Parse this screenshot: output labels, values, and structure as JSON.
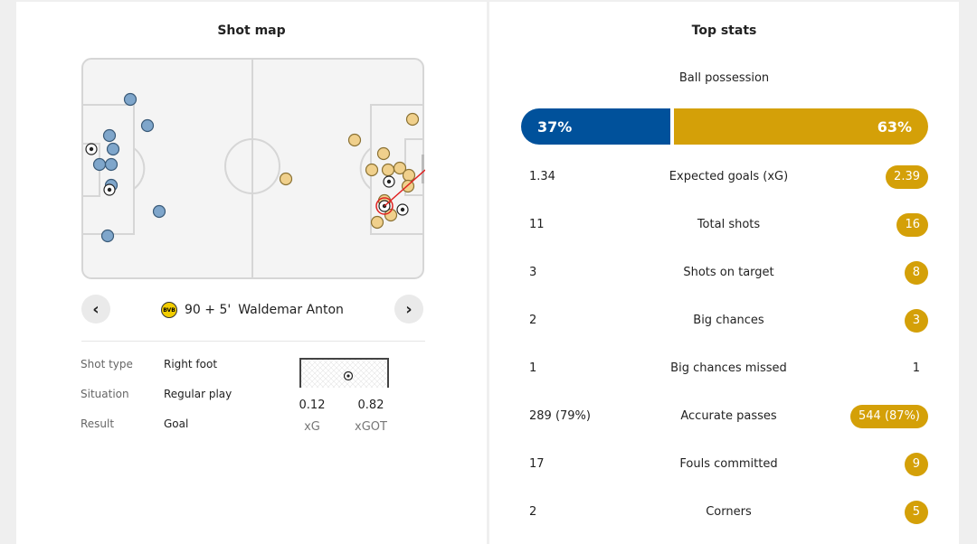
{
  "shot_map": {
    "title": "Shot map",
    "selected_shot": {
      "time": "90 + 5'",
      "player": "Waldemar Anton",
      "team_logo_text": "BVB",
      "details": [
        {
          "label": "Shot type",
          "value": "Right foot"
        },
        {
          "label": "Situation",
          "value": "Regular play"
        },
        {
          "label": "Result",
          "value": "Goal"
        }
      ],
      "xg": "0.12",
      "xgot": "0.82",
      "xg_label": "xG",
      "xgot_label": "xGOT"
    },
    "prev_icon": "chevron-left-icon",
    "next_icon": "chevron-right-icon"
  },
  "top_stats": {
    "title": "Top stats",
    "possession": {
      "label": "Ball possession",
      "home": "37%",
      "away": "63%",
      "home_fraction": 0.37,
      "home_color": "#00519b",
      "away_color": "#d4a008"
    },
    "rows": [
      {
        "label": "Expected goals (xG)",
        "home": "1.34",
        "away": "2.39",
        "away_highlight": true
      },
      {
        "label": "Total shots",
        "home": "11",
        "away": "16",
        "away_highlight": true
      },
      {
        "label": "Shots on target",
        "home": "3",
        "away": "8",
        "away_highlight": true
      },
      {
        "label": "Big chances",
        "home": "2",
        "away": "3",
        "away_highlight": true
      },
      {
        "label": "Big chances missed",
        "home": "1",
        "away": "1",
        "away_highlight": false
      },
      {
        "label": "Accurate passes",
        "home": "289 (79%)",
        "away": "544 (87%)",
        "away_highlight": true
      },
      {
        "label": "Fouls committed",
        "home": "17",
        "away": "9",
        "away_highlight": true
      },
      {
        "label": "Corners",
        "home": "2",
        "away": "5",
        "away_highlight": true
      }
    ]
  }
}
